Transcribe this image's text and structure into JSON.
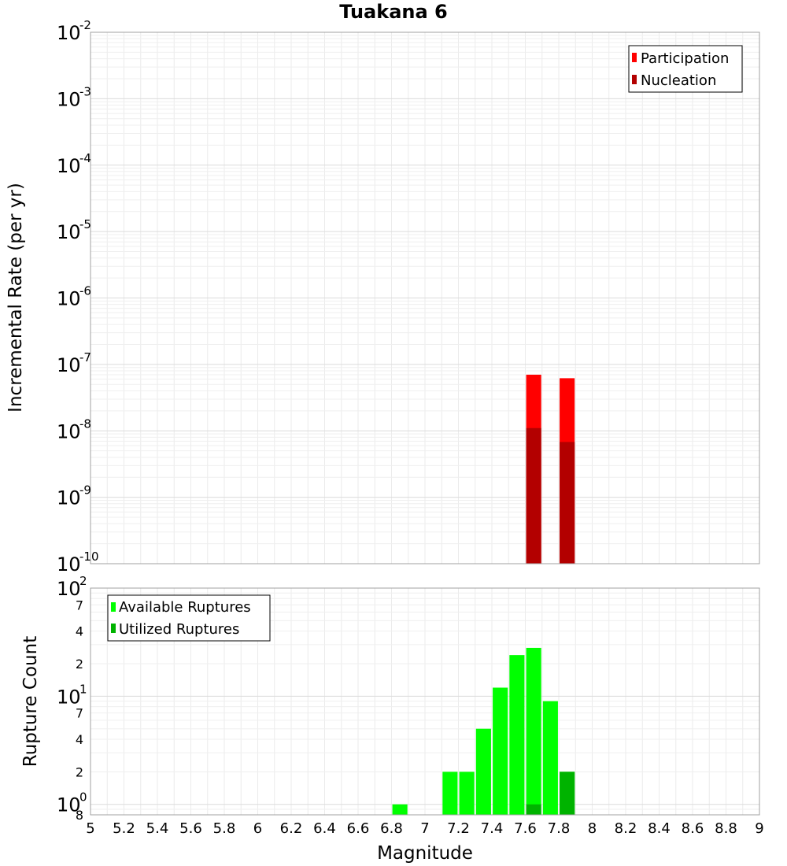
{
  "chart_data": [
    {
      "type": "bar",
      "title": "Tuakana 6",
      "ylabel": "Incremental Rate (per yr)",
      "yscale": "log",
      "ylim": [
        1e-10,
        0.01
      ],
      "xlim": [
        5,
        9
      ],
      "grid": true,
      "legend_position": "top-right",
      "bar_width": 0.09,
      "y_tick_exponents": [
        "-10",
        "-9",
        "-8",
        "-7",
        "-6",
        "-5",
        "-4",
        "-3",
        "-2"
      ],
      "series": [
        {
          "name": "Participation",
          "color": "#ff0000",
          "x": [
            7.65,
            7.85
          ],
          "values": [
            7e-08,
            6.2e-08
          ]
        },
        {
          "name": "Nucleation",
          "color": "#b30000",
          "x": [
            7.65,
            7.85
          ],
          "values": [
            1.1e-08,
            6.8e-09
          ]
        }
      ]
    },
    {
      "type": "bar",
      "ylabel": "Rupture Count",
      "xlabel": "Magnitude",
      "yscale": "log",
      "ylim": [
        0.8,
        100
      ],
      "xlim": [
        5,
        9
      ],
      "grid": true,
      "legend_position": "top-left",
      "bar_width": 0.09,
      "y_major_ticks": [
        {
          "value": 1,
          "exp": "0"
        },
        {
          "value": 10,
          "exp": "1"
        },
        {
          "value": 100,
          "exp": "2"
        }
      ],
      "y_minor_ticks": [
        {
          "value": 0.8,
          "label": "8"
        },
        {
          "value": 2,
          "label": "2"
        },
        {
          "value": 4,
          "label": "4"
        },
        {
          "value": 7,
          "label": "7"
        },
        {
          "value": 20,
          "label": "2"
        },
        {
          "value": 40,
          "label": "4"
        },
        {
          "value": 70,
          "label": "7"
        }
      ],
      "x_ticks": [
        "5",
        "5.2",
        "5.4",
        "5.6",
        "5.8",
        "6",
        "6.2",
        "6.4",
        "6.6",
        "6.8",
        "7",
        "7.2",
        "7.4",
        "7.6",
        "7.8",
        "8",
        "8.2",
        "8.4",
        "8.6",
        "8.8",
        "9"
      ],
      "series": [
        {
          "name": "Available Ruptures",
          "color": "#00ff00",
          "x": [
            6.85,
            7.15,
            7.25,
            7.35,
            7.45,
            7.55,
            7.65,
            7.75,
            7.85
          ],
          "values": [
            1,
            2,
            2,
            5,
            12,
            24,
            28,
            9,
            2
          ]
        },
        {
          "name": "Utilized Ruptures",
          "color": "#00b300",
          "x": [
            7.65,
            7.85
          ],
          "values": [
            1,
            2
          ]
        }
      ]
    }
  ]
}
